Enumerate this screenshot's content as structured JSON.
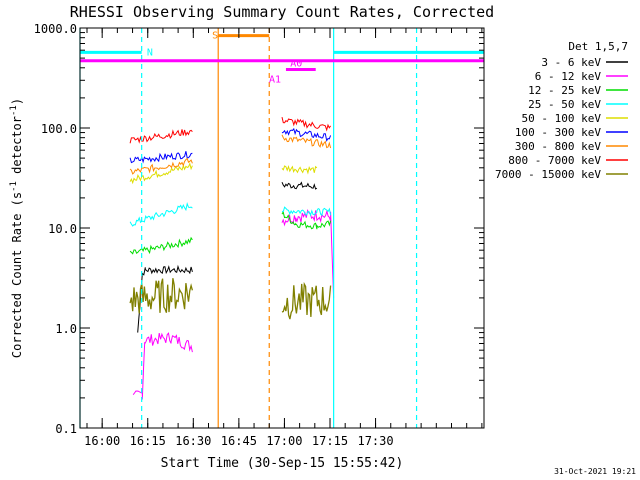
{
  "chart_data": {
    "type": "line",
    "title": "RHESSI Observing Summary Count Rates, Corrected",
    "xlabel": "Start Time (30-Sep-15 15:55:42)",
    "ylabel_main": "Corrected Count Rate (s",
    "ylabel_sup1": "-1",
    "ylabel_mid": " detector",
    "ylabel_sup2": "-1",
    "ylabel_end": ")",
    "y_scale": "log",
    "ylim": [
      0.1,
      1000
    ],
    "xlim_min": [
      -3,
      130
    ],
    "yticks": [
      {
        "v": 0.1,
        "label": "0.1"
      },
      {
        "v": 1,
        "label": "1.0"
      },
      {
        "v": 10,
        "label": "10.0"
      },
      {
        "v": 100,
        "label": "100.0"
      },
      {
        "v": 1000,
        "label": "1000.0"
      }
    ],
    "xticks": [
      {
        "m": 4.3,
        "label": "16:00"
      },
      {
        "m": 19.3,
        "label": "16:15"
      },
      {
        "m": 34.3,
        "label": "16:30"
      },
      {
        "m": 49.3,
        "label": "16:45"
      },
      {
        "m": 64.3,
        "label": "17:00"
      },
      {
        "m": 79.3,
        "label": "17:15"
      },
      {
        "m": 94.3,
        "label": "17:30"
      }
    ],
    "legend_title": "Det 1,5,7",
    "legend_position": "right",
    "series": [
      {
        "name": "3 - 6 keV",
        "color": "#000000",
        "seg1": [
          [
            16,
            0.9
          ],
          [
            17.5,
            3.5
          ],
          [
            18.5,
            3.8
          ],
          [
            34,
            3.8
          ]
        ],
        "seg2": [
          [
            63.5,
            27
          ],
          [
            75,
            26
          ]
        ]
      },
      {
        "name": "6 - 12 keV",
        "color": "#ff00ff",
        "seg1": [
          [
            14.5,
            0.2
          ],
          [
            17.5,
            0.22
          ],
          [
            18.3,
            0.75
          ],
          [
            27,
            0.8
          ],
          [
            34,
            0.65
          ]
        ],
        "seg2": [
          [
            63.5,
            12
          ],
          [
            68,
            13
          ],
          [
            75,
            13.5
          ],
          [
            79.5,
            13
          ],
          [
            80.5,
            2
          ]
        ]
      },
      {
        "name": "12 - 25 keV",
        "color": "#00dd00",
        "seg1": [
          [
            13.5,
            5.5
          ],
          [
            34,
            7.5
          ]
        ],
        "seg2": [
          [
            63.5,
            14
          ],
          [
            68,
            11
          ],
          [
            75,
            10.5
          ],
          [
            79.5,
            11
          ]
        ]
      },
      {
        "name": "25 - 50 keV",
        "color": "#00ffff",
        "seg1": [
          [
            13.5,
            11
          ],
          [
            34,
            17
          ]
        ],
        "seg2": [
          [
            63.5,
            15
          ],
          [
            75,
            14.5
          ],
          [
            79.5,
            14.5
          ]
        ]
      },
      {
        "name": "50 - 100 keV",
        "color": "#dddd00",
        "seg1": [
          [
            13.5,
            30
          ],
          [
            34,
            42
          ]
        ],
        "seg2": [
          [
            63.5,
            40
          ],
          [
            75,
            38
          ]
        ]
      },
      {
        "name": "100 - 300 keV",
        "color": "#0000ff",
        "seg1": [
          [
            13.5,
            47
          ],
          [
            34,
            55
          ]
        ],
        "seg2": [
          [
            63.5,
            95
          ],
          [
            79.5,
            80
          ]
        ]
      },
      {
        "name": "300 - 800 keV",
        "color": "#ff8800",
        "seg1": [
          [
            13.5,
            36
          ],
          [
            34,
            47
          ]
        ],
        "seg2": [
          [
            63.5,
            80
          ],
          [
            79.5,
            67
          ]
        ]
      },
      {
        "name": "800 - 7000 keV",
        "color": "#ff0000",
        "seg1": [
          [
            13.5,
            75
          ],
          [
            34,
            93
          ]
        ],
        "seg2": [
          [
            63.5,
            120
          ],
          [
            79.5,
            100
          ]
        ]
      },
      {
        "name": "7000 - 15000 keV",
        "color": "#808000",
        "seg1": [
          [
            13.5,
            1.9
          ],
          [
            34,
            2.3
          ]
        ],
        "seg2": [
          [
            63.5,
            1.8
          ],
          [
            79.5,
            1.9
          ]
        ]
      }
    ],
    "bars": [
      {
        "label": "N",
        "color": "#00ffff",
        "y": 570,
        "x_from": -3,
        "x_to": 17.3,
        "label_m": 19.0
      },
      {
        "label": "N",
        "color": "#00ffff",
        "y": 570,
        "x_from": 80.5,
        "x_to": 130,
        "label_m": null
      },
      {
        "label": "",
        "color": "#ff00ff",
        "y": 470,
        "x_from": -3,
        "x_to": 130,
        "label_m": null
      },
      {
        "label": "S",
        "color": "#ff8800",
        "y": 840,
        "x_from": 42.5,
        "x_to": 59.3,
        "label_m": 40.5
      },
      {
        "label": "A0",
        "color": "#ff00ff",
        "y": 385,
        "x_from": 64.8,
        "x_to": 74.6,
        "label_m": 66.2
      },
      {
        "label": "A1",
        "color": "#ff00ff",
        "y": 385,
        "x_from": null,
        "x_to": null,
        "label_m": 59.2
      }
    ],
    "vlines": [
      {
        "m": -3,
        "color": "#00ffff",
        "dash": false
      },
      {
        "m": 17.3,
        "color": "#00ffff",
        "dash": true
      },
      {
        "m": 42.5,
        "color": "#ff8800",
        "dash": false
      },
      {
        "m": 59.3,
        "color": "#ff8800",
        "dash": true
      },
      {
        "m": 80.5,
        "color": "#00ffff",
        "dash": false
      },
      {
        "m": 107.8,
        "color": "#00ffff",
        "dash": true
      }
    ],
    "timestamp": "31-Oct-2021 19:21"
  }
}
